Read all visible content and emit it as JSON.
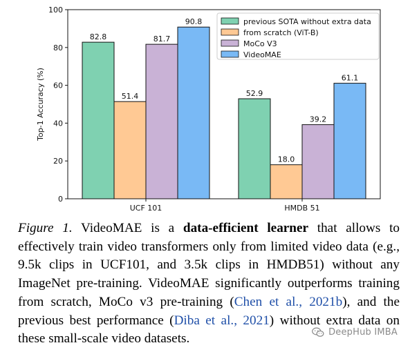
{
  "chart_data": {
    "type": "bar",
    "categories": [
      "UCF 101",
      "HMDB 51"
    ],
    "series": [
      {
        "name": "previous SOTA without extra data",
        "color": "#7fd1b1",
        "values": [
          82.8,
          52.9
        ]
      },
      {
        "name": "from scratch (ViT-B)",
        "color": "#ffc994",
        "values": [
          51.4,
          18.0
        ]
      },
      {
        "name": "MoCo V3",
        "color": "#c9b2d6",
        "values": [
          81.7,
          39.2
        ]
      },
      {
        "name": "VideoMAE",
        "color": "#79b9f5",
        "values": [
          90.8,
          61.1
        ]
      }
    ],
    "data_labels": [
      [
        "82.8",
        "51.4",
        "81.7",
        "90.8"
      ],
      [
        "52.9",
        "18.0",
        "39.2",
        "61.1"
      ]
    ],
    "ylabel": "Top-1 Accuracy (%)",
    "xlabel": "",
    "ylim": [
      0,
      100
    ],
    "yticks": [
      0,
      20,
      40,
      60,
      80,
      100
    ],
    "grid": false,
    "legend_position": "top-right"
  },
  "caption": {
    "label": "Figure 1.",
    "text_1": " VideoMAE is a ",
    "bold": "data-efficient learner",
    "text_2": " that allows to effectively train video transformers only from limited video data (e.g., 9.5k clips in UCF101, and 3.5k clips in HMDB51) without any ImageNet pre-training. VideoMAE significantly outperforms training from scratch, MoCo v3 pre-training (",
    "cite_1": "Chen et al., 2021b",
    "text_3": "), and the previous best performance (",
    "cite_2": "Diba et al., 2021",
    "text_4": ") without extra data on these small-scale video datasets."
  },
  "watermark": {
    "icon": "wechat-icon",
    "text": "DeepHub IMBA"
  }
}
